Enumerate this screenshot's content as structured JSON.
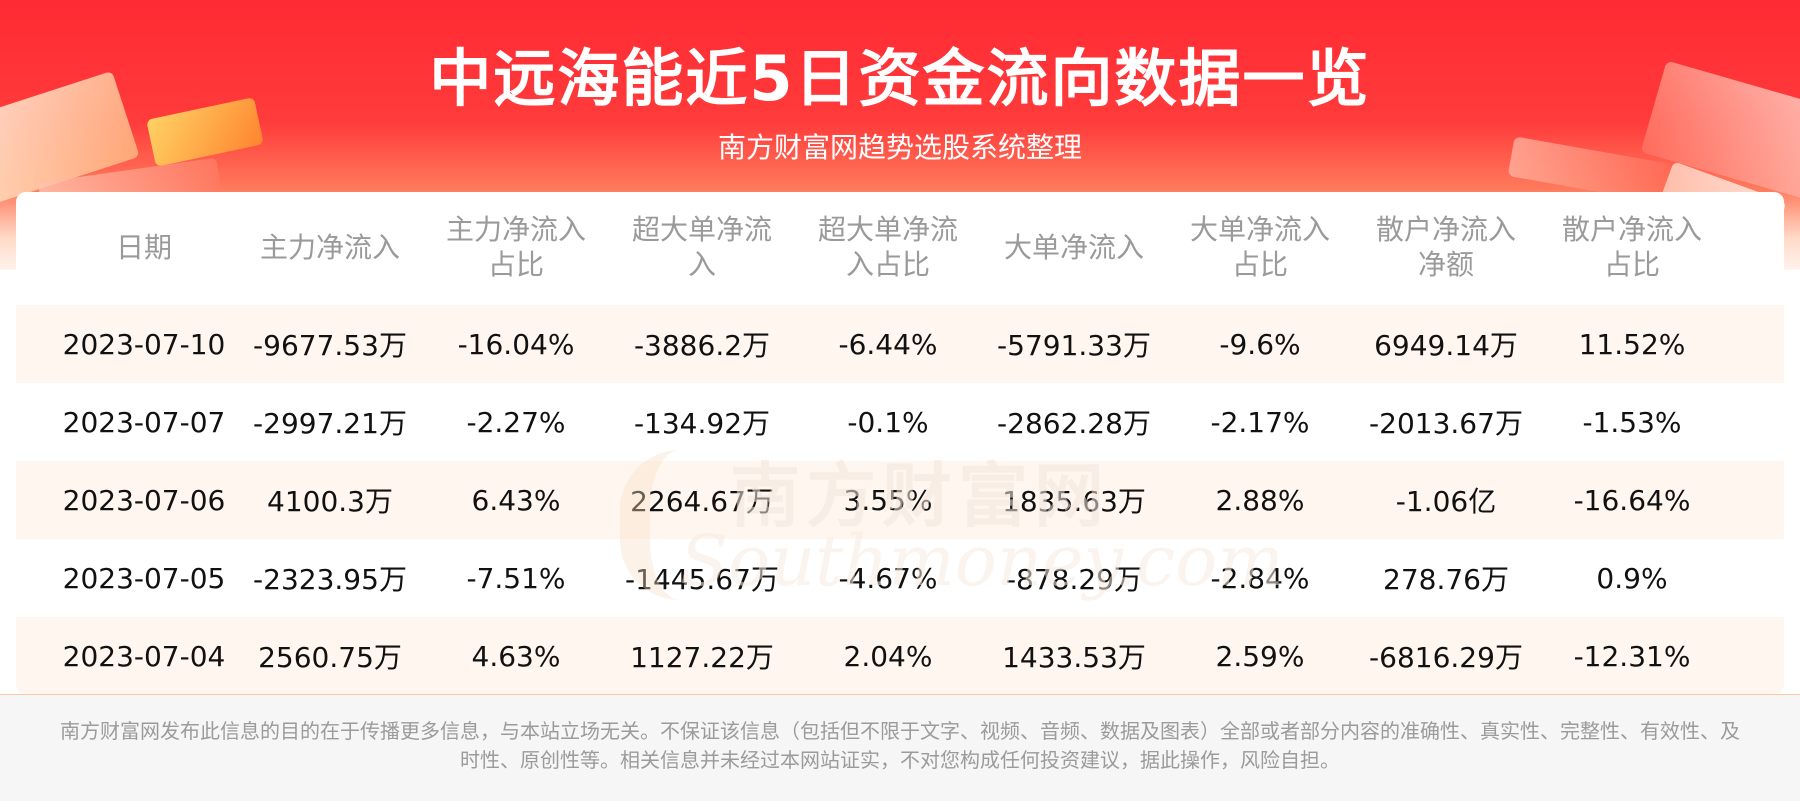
{
  "header": {
    "title": "中远海能近5日资金流向数据一览",
    "subtitle": "南方财富网趋势选股系统整理"
  },
  "table": {
    "columns": [
      "日期",
      "主力净流入",
      "主力净流入\n占比",
      "超大单净流\n入",
      "超大单净流\n入占比",
      "大单净流入",
      "大单净流入\n占比",
      "散户净流入\n净额",
      "散户净流入\n占比"
    ],
    "rows": [
      [
        "2023-07-10",
        "-9677.53万",
        "-16.04%",
        "-3886.2万",
        "-6.44%",
        "-5791.33万",
        "-9.6%",
        "6949.14万",
        "11.52%"
      ],
      [
        "2023-07-07",
        "-2997.21万",
        "-2.27%",
        "-134.92万",
        "-0.1%",
        "-2862.28万",
        "-2.17%",
        "-2013.67万",
        "-1.53%"
      ],
      [
        "2023-07-06",
        "4100.3万",
        "6.43%",
        "2264.67万",
        "3.55%",
        "1835.63万",
        "2.88%",
        "-1.06亿",
        "-16.64%"
      ],
      [
        "2023-07-05",
        "-2323.95万",
        "-7.51%",
        "-1445.67万",
        "-4.67%",
        "-878.29万",
        "-2.84%",
        "278.76万",
        "0.9%"
      ],
      [
        "2023-07-04",
        "2560.75万",
        "4.63%",
        "1127.22万",
        "2.04%",
        "1433.53万",
        "2.59%",
        "-6816.29万",
        "-12.31%"
      ]
    ]
  },
  "watermark": {
    "cn": "南方财富网",
    "en": "Southmoney.com"
  },
  "footer": {
    "disclaimer": "南方财富网发布此信息的目的在于传播更多信息，与本站立场无关。不保证该信息（包括但不限于文字、视频、音频、数据及图表）全部或者部分内容的准确性、真实性、完整性、有效性、及时性、原创性等。相关信息并未经过本网站证实，不对您构成任何投资建议，据此操作，风险自担。"
  },
  "colors": {
    "banner_red": "#ff2a33",
    "row_shade": "#fff7ef",
    "header_text": "#9a9a9a",
    "body_text": "#111111"
  }
}
